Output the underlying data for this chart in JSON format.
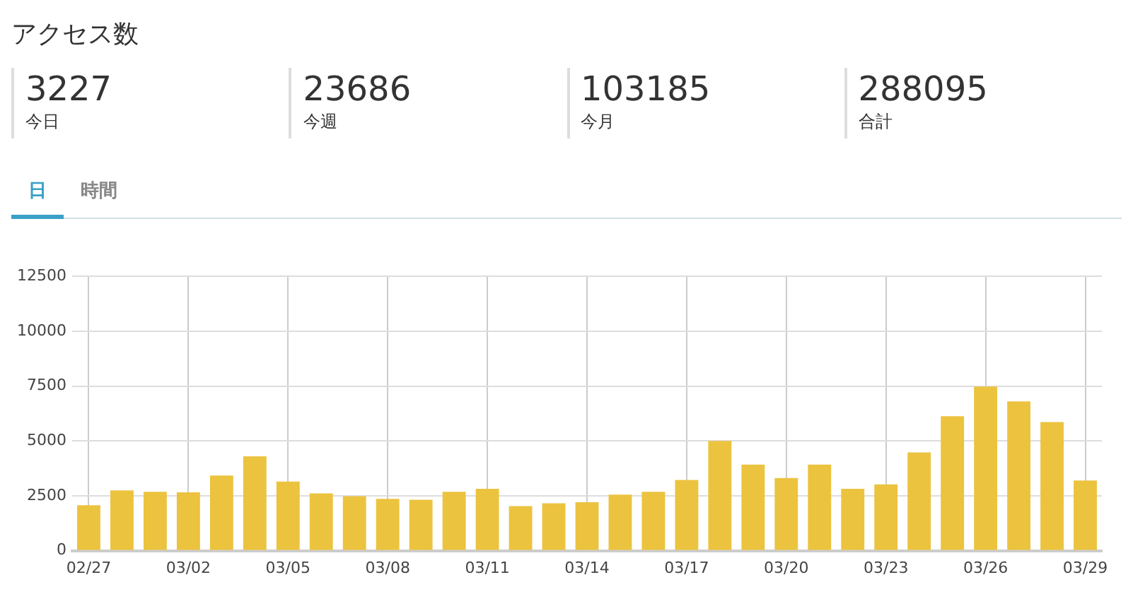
{
  "chart_data": [
    {
      "type": "other",
      "title": "アクセス数",
      "categories": [
        "今日",
        "今週",
        "今月",
        "合計"
      ],
      "values": [
        3227,
        23686,
        103185,
        288095
      ],
      "annotations": [
        "日",
        "時間"
      ],
      "data_labels": true
    },
    {
      "type": "bar",
      "categories": [
        "02/27",
        null,
        null,
        "03/02",
        null,
        null,
        "03/05",
        null,
        null,
        "03/08",
        null,
        null,
        "03/11",
        null,
        null,
        "03/14",
        null,
        null,
        "03/17",
        null,
        null,
        "03/20",
        null,
        null,
        "03/23",
        null,
        null,
        "03/26",
        null,
        null,
        "03/29"
      ],
      "values": [
        2070,
        2750,
        2680,
        2660,
        3420,
        4300,
        3150,
        2610,
        2480,
        2360,
        2320,
        2680,
        2820,
        2030,
        2160,
        2210,
        2550,
        2680,
        3220,
        5000,
        3920,
        3310,
        3920,
        2820,
        3020,
        4480,
        6130,
        7480,
        6800,
        5860,
        3200
      ],
      "color": "#ecc33f",
      "ylim": [
        0,
        12500
      ],
      "yticks": [
        0,
        2500,
        5000,
        7500,
        10000,
        12500
      ],
      "grid": true
    }
  ]
}
